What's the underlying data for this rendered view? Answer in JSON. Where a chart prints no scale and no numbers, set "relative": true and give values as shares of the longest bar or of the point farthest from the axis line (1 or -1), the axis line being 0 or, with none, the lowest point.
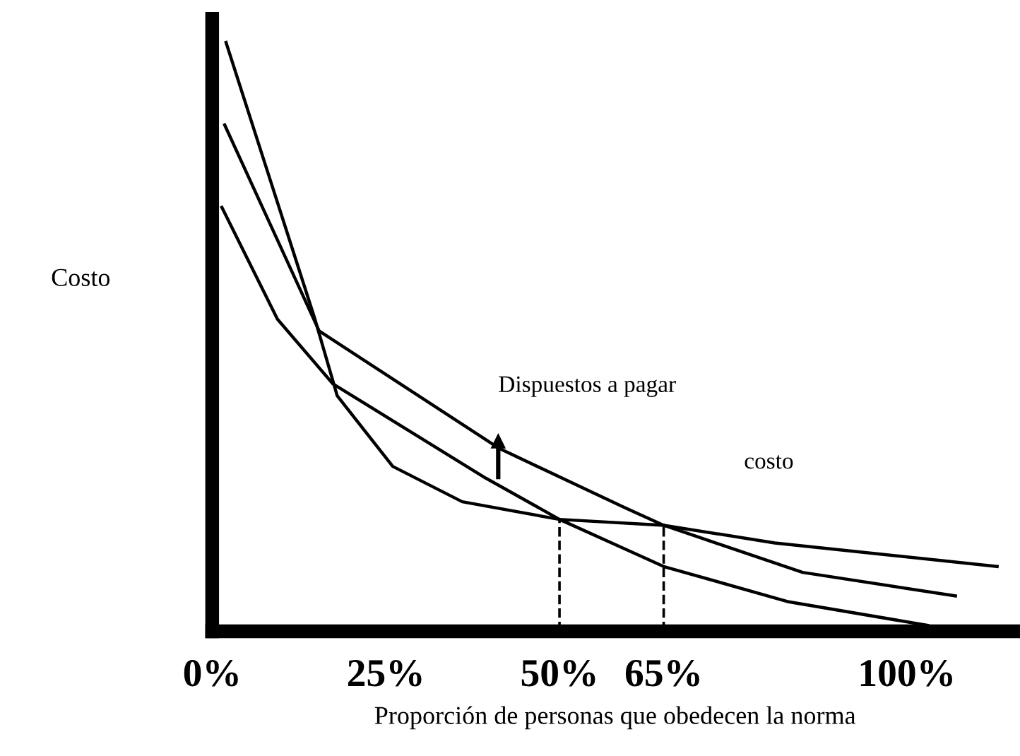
{
  "chart_data": {
    "type": "line",
    "relative": true,
    "xlabel": "Proporción de personas que obedecen la norma",
    "ylabel": "Costo",
    "xlim": [
      0,
      116
    ],
    "xticks": [
      {
        "value": 0,
        "label": "0%"
      },
      {
        "value": 25,
        "label": "25%"
      },
      {
        "value": 50,
        "label": "50%"
      },
      {
        "value": 65,
        "label": "65%"
      },
      {
        "value": 100,
        "label": "100%"
      }
    ],
    "series": [
      {
        "color": "#000000",
        "x": [
          2,
          14.8,
          18,
          26,
          36,
          50,
          65,
          81,
          113
        ],
        "values": [
          1.0,
          0.53,
          0.4,
          0.28,
          0.22,
          0.19,
          0.18,
          0.15,
          0.11
        ]
      },
      {
        "color": "#000000",
        "x": [
          1.8,
          15.4,
          41.4,
          59.4,
          65,
          85,
          107
        ],
        "values": [
          0.86,
          0.51,
          0.31,
          0.21,
          0.18,
          0.1,
          0.06
        ]
      },
      {
        "color": "#000000",
        "x": [
          1.4,
          9.4,
          17.4,
          39.4,
          50,
          65,
          83,
          103
        ],
        "values": [
          0.72,
          0.53,
          0.42,
          0.26,
          0.19,
          0.11,
          0.05,
          0.01
        ]
      }
    ],
    "ref_lines": [
      {
        "axis": "x",
        "value": 50,
        "line_style": "dashed",
        "color": "#000000"
      },
      {
        "axis": "x",
        "value": 65,
        "line_style": "dashed",
        "color": "#000000"
      }
    ],
    "annotations": [
      "Dispuestos a pagar",
      "costo"
    ],
    "grid": false,
    "legend": false,
    "marker": "none",
    "line_style": "solid"
  }
}
